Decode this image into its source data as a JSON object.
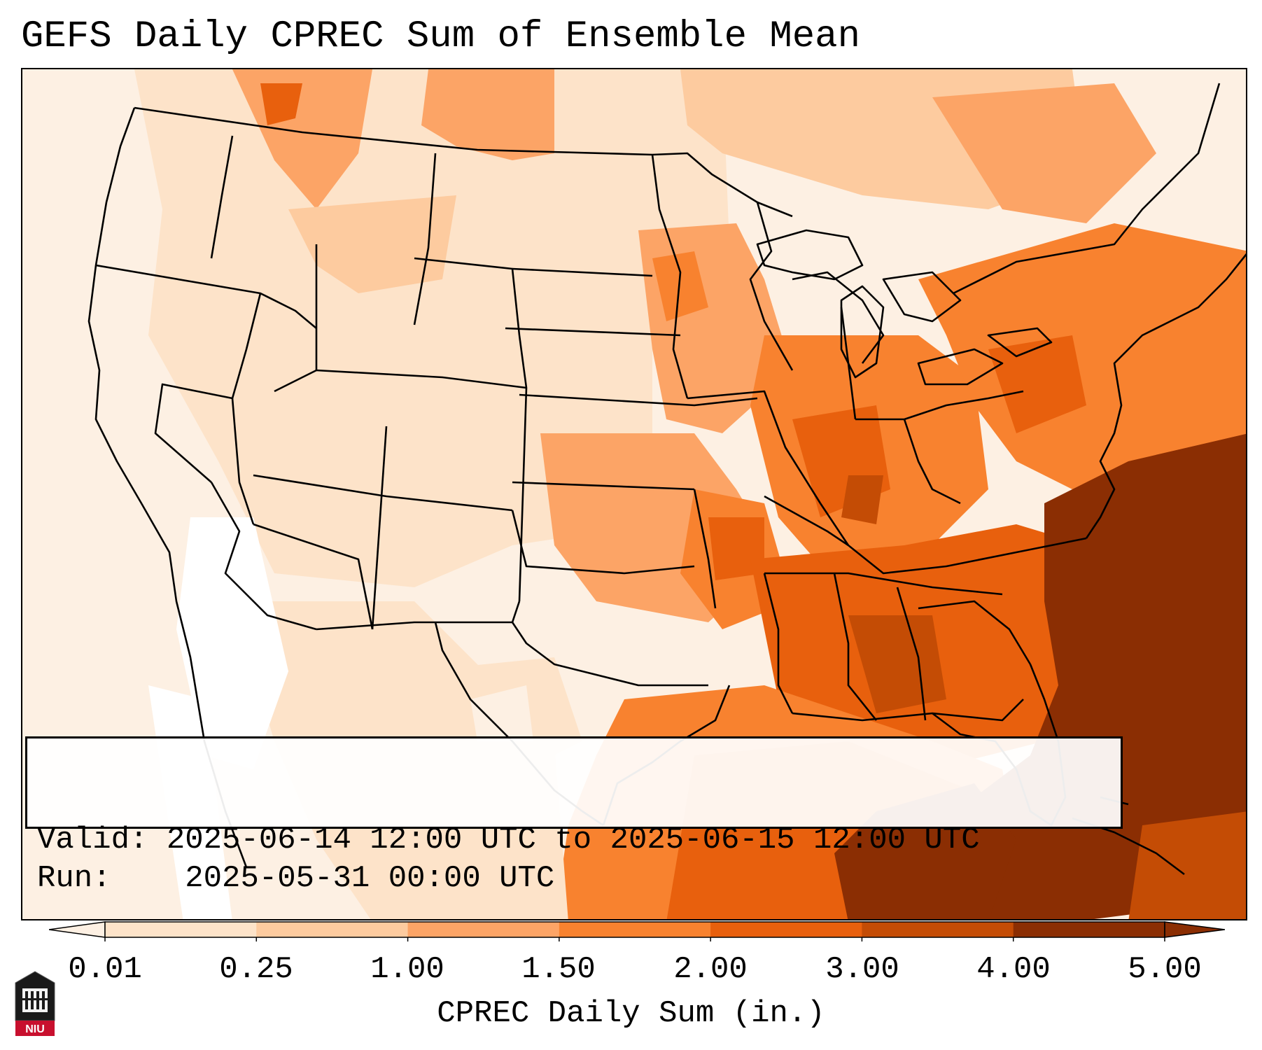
{
  "title": "GEFS Daily CPREC Sum of Ensemble Mean",
  "info": {
    "valid_label": "Valid:",
    "valid_text": "2025-06-14 12:00 UTC to 2025-06-15 12:00 UTC",
    "run_label": "Run:",
    "run_text": "2025-05-31 00:00 UTC"
  },
  "colorbar": {
    "label": "CPREC Daily Sum (in.)",
    "ticks": [
      "0.01",
      "0.25",
      "1.00",
      "1.50",
      "2.00",
      "3.00",
      "4.00",
      "5.00"
    ],
    "colors": [
      "#fdf0e3",
      "#fde3c9",
      "#fdcb9f",
      "#fca466",
      "#f8822f",
      "#e8600d",
      "#c44c05",
      "#8b2e03"
    ]
  },
  "logo": {
    "text": "NIU",
    "color": "#c8102e",
    "icon": "university-tower-icon"
  },
  "map": {
    "region": "Contiguous United States",
    "colors": {
      "lightest": "#fdf0e3",
      "light": "#fde3c9",
      "light_mid": "#fdcb9f",
      "mid": "#fca466",
      "mid_dark": "#f8822f",
      "dark": "#e8600d",
      "darker": "#c44c05",
      "darkest": "#8b2e03"
    }
  }
}
